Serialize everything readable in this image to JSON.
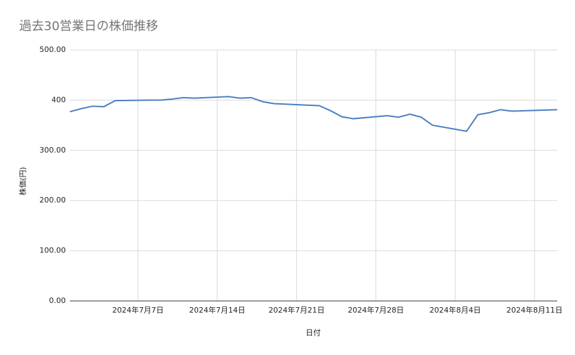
{
  "chart_data": {
    "type": "line",
    "title": "過去30営業日の株価推移",
    "x_label": "日付",
    "y_label": "株価(円)",
    "x": [
      "2024-07-01",
      "2024-07-02",
      "2024-07-03",
      "2024-07-04",
      "2024-07-05",
      "2024-07-08",
      "2024-07-09",
      "2024-07-10",
      "2024-07-11",
      "2024-07-12",
      "2024-07-15",
      "2024-07-16",
      "2024-07-17",
      "2024-07-18",
      "2024-07-19",
      "2024-07-22",
      "2024-07-23",
      "2024-07-24",
      "2024-07-25",
      "2024-07-26",
      "2024-07-29",
      "2024-07-30",
      "2024-07-31",
      "2024-08-01",
      "2024-08-02",
      "2024-08-05",
      "2024-08-06",
      "2024-08-07",
      "2024-08-08",
      "2024-08-09",
      "2024-08-13"
    ],
    "series": [
      {
        "name": "株価",
        "color": "#4a7fc1",
        "values": [
          377,
          383,
          388,
          387,
          399,
          400,
          400,
          402,
          405,
          404,
          407,
          404,
          405,
          397,
          393,
          390,
          389,
          379,
          367,
          363,
          369,
          366,
          372,
          366,
          350,
          338,
          371,
          375,
          381,
          378,
          381
        ]
      }
    ],
    "xlim": [
      "2024-07-01",
      "2024-08-13"
    ],
    "xticks": [
      {
        "value": "2024-07-07",
        "label": "2024年7月7日"
      },
      {
        "value": "2024-07-14",
        "label": "2024年7月14日"
      },
      {
        "value": "2024-07-21",
        "label": "2024年7月21日"
      },
      {
        "value": "2024-07-28",
        "label": "2024年7月28日"
      },
      {
        "value": "2024-08-04",
        "label": "2024年8月4日"
      },
      {
        "value": "2024-08-11",
        "label": "2024年8月11日"
      }
    ],
    "ylim": [
      0,
      500
    ],
    "yticks": [
      {
        "value": 0,
        "label": "0.00"
      },
      {
        "value": 100,
        "label": "100.00"
      },
      {
        "value": 200,
        "label": "200.00"
      },
      {
        "value": 300,
        "label": "300.00"
      },
      {
        "value": 400,
        "label": "400"
      },
      {
        "value": 500,
        "label": "500.00"
      }
    ],
    "grid": true
  }
}
